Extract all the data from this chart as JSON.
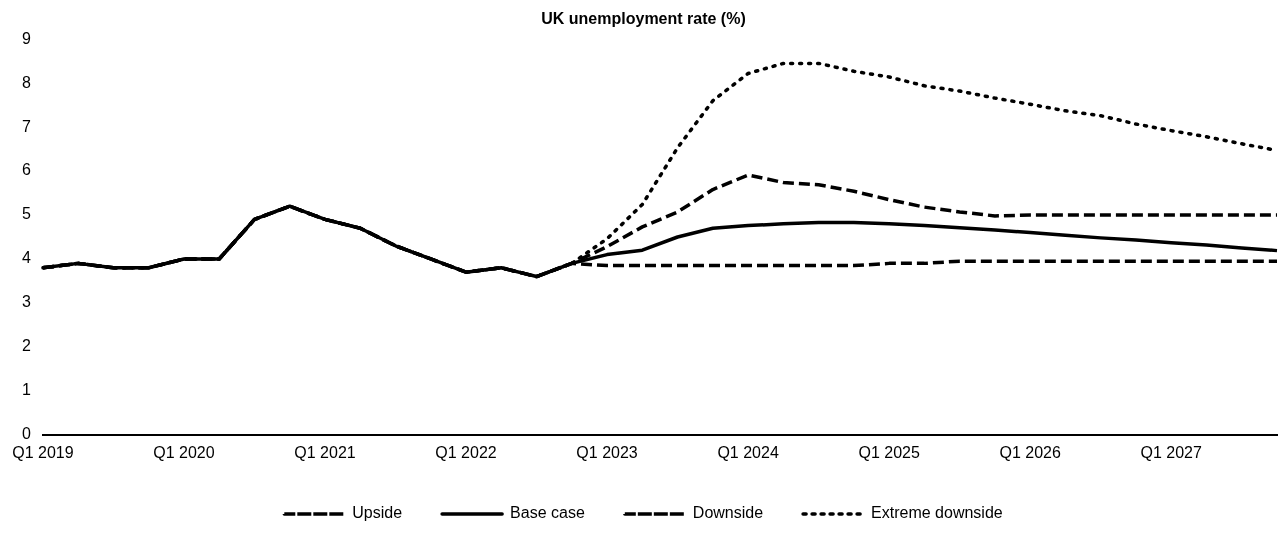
{
  "chart_data": {
    "type": "line",
    "title": "UK unemployment rate (%)",
    "categories": [
      "Q1 2019",
      null,
      null,
      null,
      "Q1 2020",
      null,
      null,
      null,
      "Q1 2021",
      null,
      null,
      null,
      "Q1 2022",
      null,
      null,
      null,
      "Q1 2023",
      null,
      null,
      null,
      "Q1 2024",
      null,
      null,
      null,
      "Q1 2025",
      null,
      null,
      null,
      "Q1 2026",
      null,
      null,
      null,
      "Q1 2027",
      null,
      null,
      null
    ],
    "series": [
      {
        "name": "Upside",
        "color": "#000000",
        "line_style": "dashed",
        "values": [
          3.8,
          3.9,
          3.8,
          3.8,
          4.0,
          4.0,
          4.9,
          5.2,
          4.9,
          4.7,
          4.3,
          4.0,
          3.7,
          3.8,
          3.6,
          3.9,
          3.85,
          3.85,
          3.85,
          3.85,
          3.85,
          3.85,
          3.85,
          3.85,
          3.9,
          3.9,
          3.95,
          3.95,
          3.95,
          3.95,
          3.95,
          3.95,
          3.95,
          3.95,
          3.95,
          3.95
        ]
      },
      {
        "name": "Base case",
        "color": "#000000",
        "line_style": "solid",
        "values": [
          3.8,
          3.9,
          3.8,
          3.8,
          4.0,
          4.0,
          4.9,
          5.2,
          4.9,
          4.7,
          4.3,
          4.0,
          3.7,
          3.8,
          3.6,
          3.9,
          4.1,
          4.2,
          4.5,
          4.7,
          4.76,
          4.8,
          4.83,
          4.83,
          4.8,
          4.76,
          4.71,
          4.66,
          4.6,
          4.54,
          4.48,
          4.43,
          4.37,
          4.32,
          4.25,
          4.19
        ]
      },
      {
        "name": "Downside",
        "color": "#000000",
        "line_style": "dashed",
        "values": [
          3.8,
          3.9,
          3.8,
          3.8,
          4.0,
          4.0,
          4.9,
          5.2,
          4.9,
          4.7,
          4.3,
          4.0,
          3.7,
          3.8,
          3.6,
          3.9,
          4.28,
          4.73,
          5.07,
          5.58,
          5.91,
          5.74,
          5.69,
          5.54,
          5.35,
          5.18,
          5.07,
          4.98,
          5.0,
          5.0,
          5.0,
          5.0,
          5.0,
          5.0,
          5.0,
          5.0
        ]
      },
      {
        "name": "Extreme downside",
        "color": "#000000",
        "line_style": "dotted",
        "values": [
          3.8,
          3.9,
          3.8,
          3.8,
          4.0,
          4.0,
          4.9,
          5.2,
          4.9,
          4.7,
          4.3,
          4.0,
          3.7,
          3.8,
          3.6,
          3.9,
          4.46,
          5.24,
          6.53,
          7.6,
          8.22,
          8.45,
          8.45,
          8.27,
          8.14,
          7.94,
          7.82,
          7.66,
          7.52,
          7.37,
          7.26,
          7.07,
          6.92,
          6.78,
          6.62,
          6.47
        ]
      }
    ],
    "ylim": [
      0,
      9
    ],
    "yticks": [
      0,
      1,
      2,
      3,
      4,
      5,
      6,
      7,
      8,
      9
    ],
    "grid": false,
    "legend": "bottom"
  }
}
